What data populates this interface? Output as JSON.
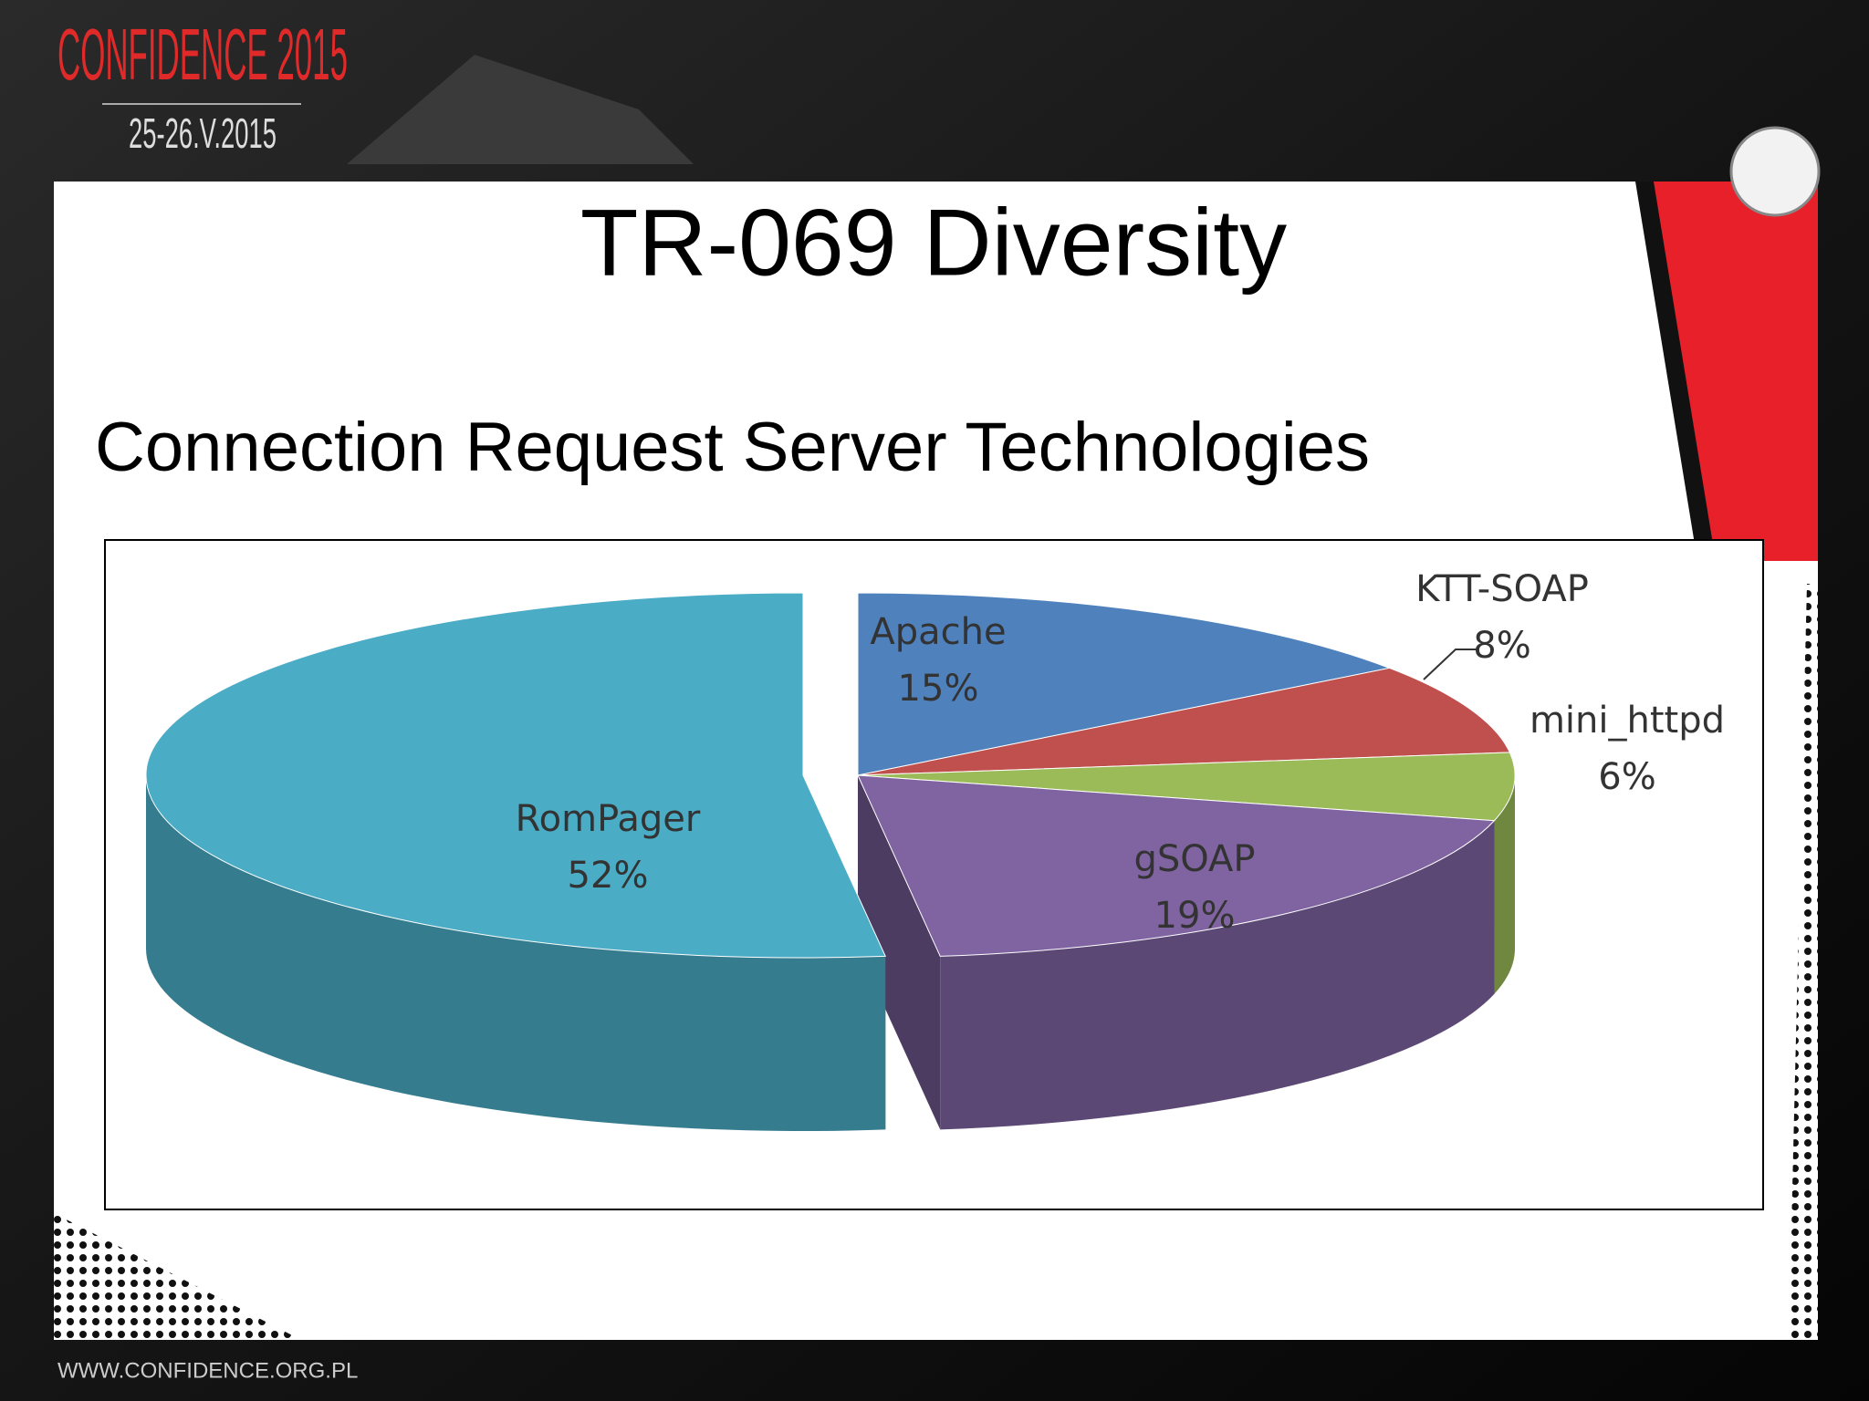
{
  "header": {
    "event": "CONFIDENCE 2015",
    "dates": "25-26.V.2015"
  },
  "slide": {
    "title": "TR-069 Diversity",
    "subtitle": "Connection Request Server Technologies"
  },
  "footer": {
    "url": "WWW.CONFIDENCE.ORG.PL"
  },
  "chart_data": {
    "type": "pie3d",
    "categories": [
      "Apache",
      "KTT-SOAP",
      "mini_httpd",
      "gSOAP",
      "RomPager"
    ],
    "values": [
      15,
      8,
      6,
      19,
      52
    ],
    "value_labels": [
      "15%",
      "8%",
      "6%",
      "19%",
      "52%"
    ],
    "colors": [
      "#4f81bd",
      "#c0504d",
      "#9bbb59",
      "#8064a2",
      "#4bacc6"
    ]
  }
}
